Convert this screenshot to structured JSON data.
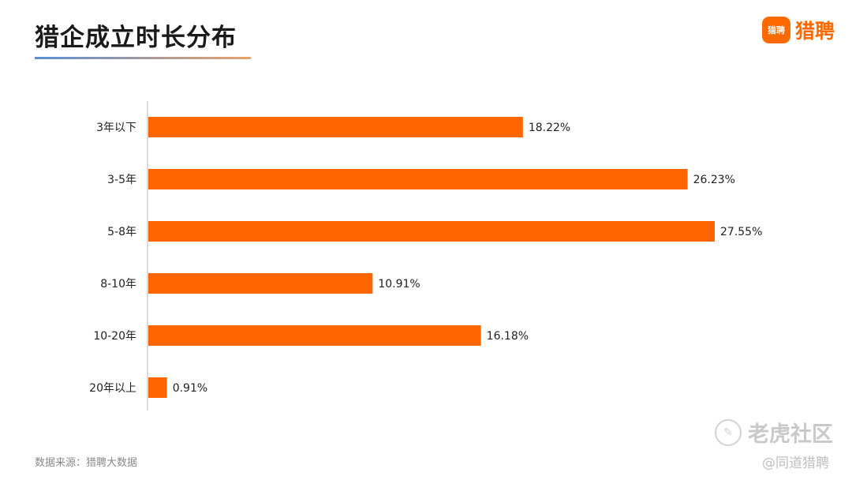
{
  "header": {
    "title": "猎企成立时长分布"
  },
  "brand": {
    "badge_text": "猎聘",
    "name": "猎聘",
    "color": "#ff6a00"
  },
  "footer": {
    "source": "数据来源：猎聘大数据"
  },
  "watermark": {
    "main": "老虎社区",
    "sub": "@同道猎聘"
  },
  "chart_data": {
    "type": "bar",
    "orientation": "horizontal",
    "categories": [
      "3年以下",
      "3-5年",
      "5-8年",
      "8-10年",
      "10-20年",
      "20年以上"
    ],
    "values": [
      18.22,
      26.23,
      27.55,
      10.91,
      16.18,
      0.91
    ],
    "value_labels": [
      "18.22%",
      "26.23%",
      "27.55%",
      "10.91%",
      "16.18%",
      "0.91%"
    ],
    "unit": "%",
    "bar_color": "#ff6600",
    "xlim": [
      0,
      30
    ],
    "grid": false,
    "legend": "none"
  }
}
